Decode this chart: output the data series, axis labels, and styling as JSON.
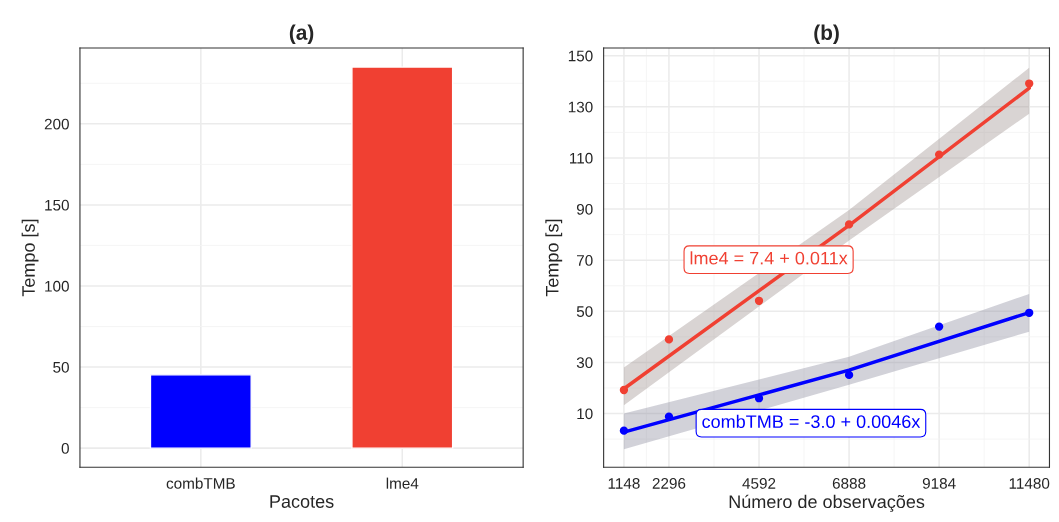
{
  "chart_data": [
    {
      "type": "bar",
      "title": "(a)",
      "xlabel": "Pacotes",
      "ylabel": "Tempo [s]",
      "categories": [
        "combTMB",
        "lme4"
      ],
      "values": [
        45.2,
        235
      ],
      "colors": [
        "#0000ff",
        "#f04032"
      ],
      "ylim": [
        -11.75,
        246.75
      ],
      "yticks": [
        0,
        50,
        100,
        150,
        200
      ],
      "grid": true
    },
    {
      "type": "scatter",
      "title": "(b)",
      "xlabel": "Número de observações",
      "ylabel": "Tempo [s]",
      "xlim": [
        631,
        11997
      ],
      "xticks": [
        1148,
        2296,
        4592,
        6888,
        9184,
        11480
      ],
      "ylim": [
        -11,
        153
      ],
      "yticks": [
        10,
        30,
        50,
        70,
        90,
        110,
        130,
        150
      ],
      "grid": true,
      "series": [
        {
          "type": "scatter",
          "marker": "circle",
          "color": "#f04032",
          "x": [
            1148,
            2296,
            4592,
            6888,
            9184,
            11480
          ],
          "values": [
            19.2,
            39,
            54.1,
            84,
            111.3,
            139.1
          ]
        },
        {
          "type": "scatter",
          "marker": "circle",
          "color": "#0000ff",
          "x": [
            1148,
            2296,
            4592,
            6888,
            9184,
            11480
          ],
          "values": [
            3.3,
            8.8,
            16,
            25.1,
            44,
            49.4
          ]
        },
        {
          "type": "line",
          "color": "#f04032",
          "x": [
            1148,
            6888,
            11480
          ],
          "values": [
            19.7,
            83.6,
            137.3
          ],
          "lower": [
            13.2,
            77.7,
            127.3
          ],
          "upper": [
            28,
            89.6,
            145.3
          ]
        },
        {
          "type": "line",
          "color": "#0000ff",
          "x": [
            1148,
            6888,
            11480
          ],
          "values": [
            2.7,
            27,
            49.5
          ],
          "lower": [
            -4,
            21.3,
            42
          ],
          "upper": [
            10,
            32.2,
            56.8
          ]
        }
      ],
      "annotations": [
        "lme4 = 7.4 + 0.011x",
        "combTMB = -3.0 + 0.0046x"
      ]
    }
  ]
}
